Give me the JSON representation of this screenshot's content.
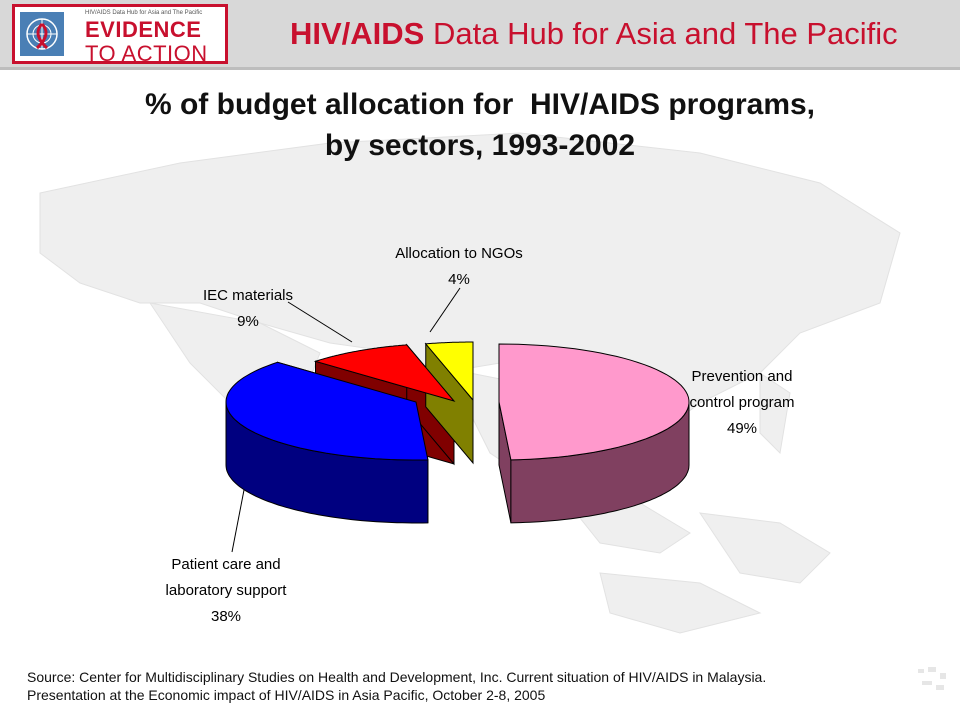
{
  "header": {
    "logo": {
      "caption": "HIV/AIDS Data Hub for Asia and The Pacific",
      "line1": "EVIDENCE",
      "line2": "TO ACTION"
    },
    "title_bold": "HIV/AIDS",
    "title_rest": "Data Hub for Asia and The Pacific"
  },
  "colors": {
    "brand_red": "#c8102e",
    "header_gray": "#d8d8d8"
  },
  "chart_data": {
    "type": "pie",
    "title_lines": [
      "% of budget allocation for  HIV/AIDS programs,",
      "by sectors, 1993-2002"
    ],
    "slices": [
      {
        "label_lines": [
          "Prevention and",
          "control program",
          "49%"
        ],
        "value": 49,
        "top_color": "#ff99cc",
        "side_color": "#804060"
      },
      {
        "label_lines": [
          "Patient care and",
          "laboratory support",
          "38%"
        ],
        "value": 38,
        "top_color": "#0000ff",
        "side_color": "#000080"
      },
      {
        "label_lines": [
          "IEC materials",
          "9%"
        ],
        "value": 9,
        "top_color": "#ff0000",
        "side_color": "#800000"
      },
      {
        "label_lines": [
          "Allocation to NGOs",
          "4%"
        ],
        "value": 4,
        "top_color": "#ffff00",
        "side_color": "#808000"
      }
    ],
    "style": "3d-exploded"
  },
  "source": {
    "line1": "Source: Center for Multidisciplinary Studies on Health and Development, Inc. Current situation of HIV/AIDS in Malaysia.",
    "line2": "Presentation at the Economic impact of HIV/AIDS in Asia Pacific, October 2-8, 2005"
  }
}
